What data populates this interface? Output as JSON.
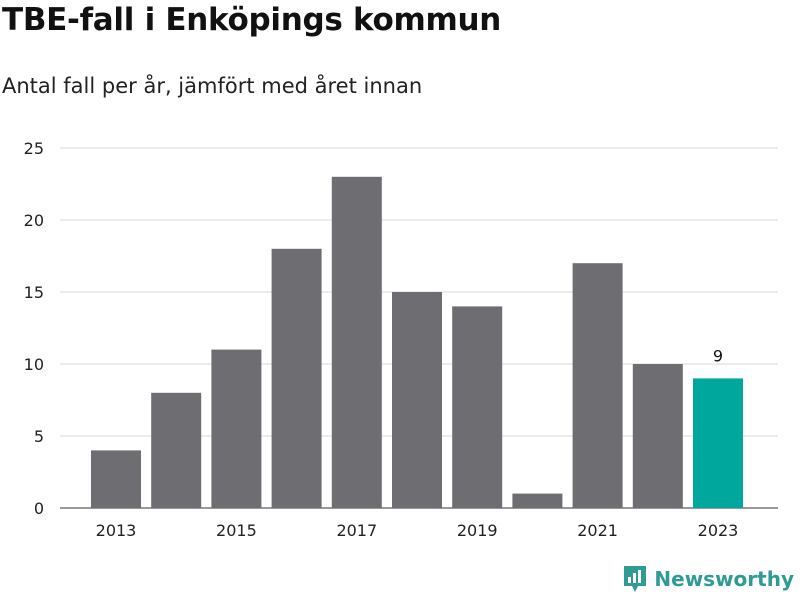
{
  "chart_data": {
    "type": "bar",
    "title": "TBE-fall i Enköpings kommun",
    "subtitle": "Antal fall per år, jämfört med året innan",
    "categories": [
      "2013",
      "2014",
      "2015",
      "2016",
      "2017",
      "2018",
      "2019",
      "2020",
      "2021",
      "2022",
      "2023"
    ],
    "values": [
      4,
      8,
      11,
      18,
      23,
      15,
      14,
      1,
      17,
      10,
      9
    ],
    "x_tick_labels": [
      "2013",
      "2015",
      "2017",
      "2019",
      "2021",
      "2023"
    ],
    "y_ticks": [
      0,
      5,
      10,
      15,
      20,
      25
    ],
    "ylim": [
      0,
      25
    ],
    "grid": true,
    "highlight": {
      "category": "2023",
      "label": "9"
    },
    "colors": {
      "bar": "#6e6d72",
      "highlight": "#00a79d",
      "grid": "#d9d9d9"
    }
  },
  "branding": {
    "name": "Newsworthy",
    "icon": "newsworthy-logo-icon",
    "color": "#2e9b94"
  }
}
